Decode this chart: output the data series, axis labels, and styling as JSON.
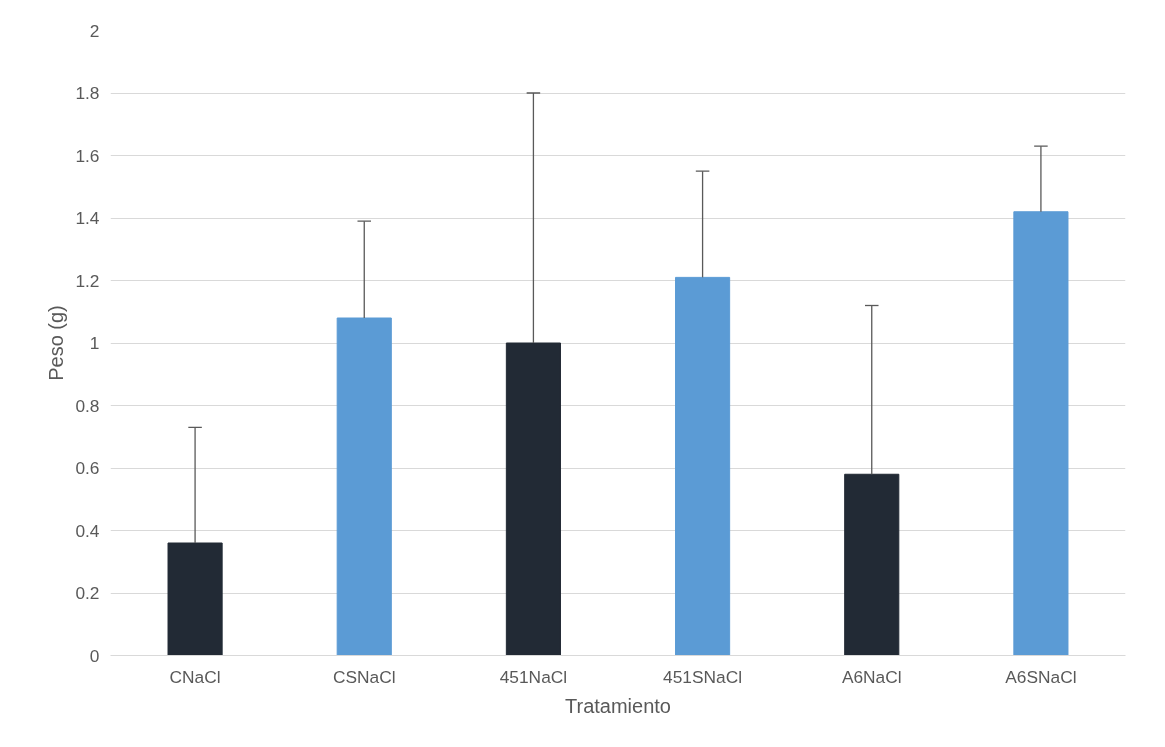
{
  "chart_data": {
    "type": "bar",
    "xlabel": "Tratamiento",
    "ylabel": "Peso (g)",
    "categories": [
      "CNaCl",
      "CSNaCl",
      "451NaCl",
      "451SNaCl",
      "A6NaCl",
      "A6SNaCl"
    ],
    "values": [
      0.36,
      1.08,
      1.0,
      1.21,
      0.58,
      1.42
    ],
    "colors": [
      "#222a35",
      "#5b9bd5",
      "#222a35",
      "#5b9bd5",
      "#222a35",
      "#5b9bd5"
    ],
    "errors": [
      [
        0.36,
        0.73
      ],
      [
        1.08,
        1.39
      ],
      [
        1.0,
        1.8
      ],
      [
        1.21,
        1.55
      ],
      [
        0.58,
        1.12
      ],
      [
        1.42,
        1.63
      ]
    ],
    "ylim": [
      0,
      2
    ],
    "yticks": [
      0,
      {
        "value": 0.2,
        "label": "0.2"
      },
      {
        "value": 0.4,
        "label": "0.4"
      },
      {
        "value": 0.6,
        "label": "0.6"
      },
      {
        "value": 0.8,
        "label": "0.8"
      },
      1,
      {
        "value": 1.2,
        "label": "1.2"
      },
      {
        "value": 1.4,
        "label": "1.4"
      },
      {
        "value": 1.6,
        "label": "1.6"
      },
      {
        "value": 1.8,
        "label": "1.8"
      },
      2
    ],
    "grid": "y"
  }
}
